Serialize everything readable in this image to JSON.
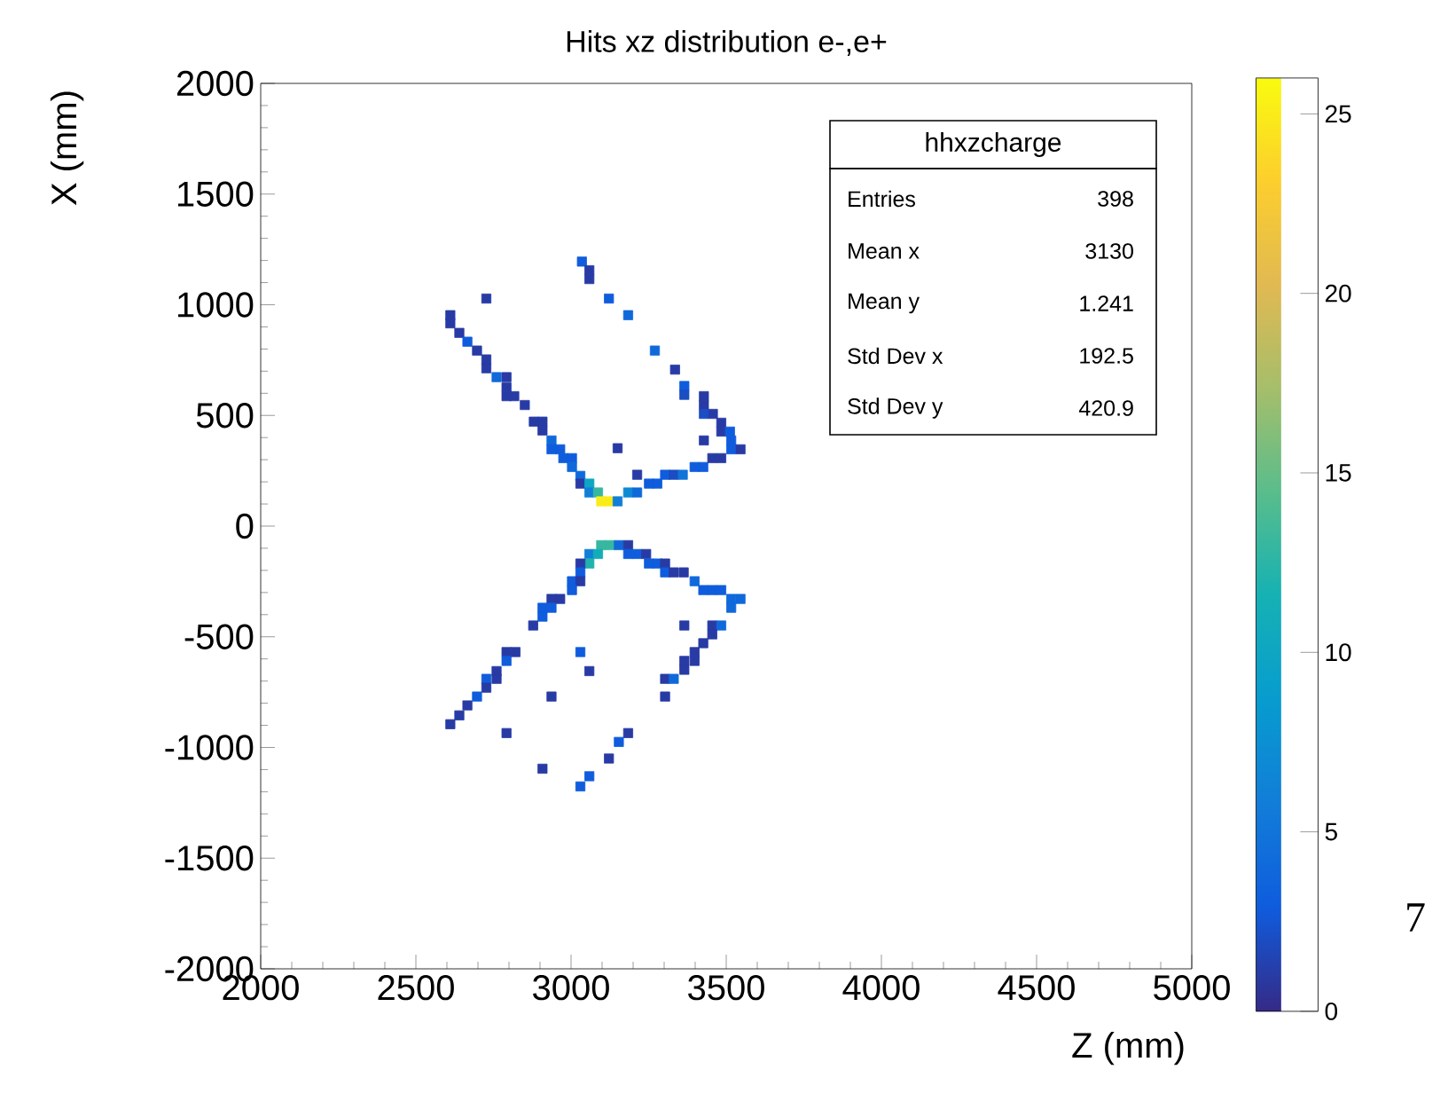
{
  "chart_data": {
    "type": "scatter",
    "title": "Hits xz distribution e-,e+",
    "xlabel": "Z (mm)",
    "ylabel": "X (mm)",
    "x": [
      3035,
      3059,
      3059,
      2727,
      3122,
      3184,
      2611,
      2611,
      2640,
      2666,
      2697,
      2727,
      2727,
      2760,
      2792,
      2792,
      2792,
      2817,
      2851,
      3270,
      3335,
      3365,
      3365,
      3428,
      3428,
      3457,
      3428,
      3484,
      3484,
      3512,
      3516,
      3516,
      3546,
      3428,
      2880,
      2908,
      2908,
      2937,
      2937,
      2965,
      2975,
      3003,
      3003,
      3150,
      3030,
      3030,
      3059,
      3059,
      3087,
      3097,
      3122,
      3150,
      3184,
      3213,
      3213,
      3251,
      3278,
      3303,
      3331,
      3360,
      3398,
      3426,
      3455,
      3484,
      3097,
      3125,
      3154,
      3184,
      3059,
      3087,
      3059,
      3030,
      3184,
      3213,
      3242,
      3251,
      3278,
      3303,
      3303,
      3331,
      3363,
      3398,
      3426,
      3455,
      3484,
      3516,
      3546,
      3516,
      3030,
      3003,
      3030,
      3003,
      2937,
      2965,
      2908,
      2937,
      2908,
      2878,
      3365,
      3455,
      3484,
      3455,
      3426,
      2792,
      2821,
      2792,
      3030,
      3398,
      3398,
      3365,
      3365,
      2760,
      2760,
      2727,
      2727,
      2697,
      3059,
      3303,
      3331,
      2666,
      2640,
      2611,
      2937,
      3303,
      2792,
      3184,
      3154,
      3122,
      2908,
      3059,
      3030
    ],
    "values": [
      1195,
      1156,
      1116,
      1028,
      1028,
      953,
      953,
      916,
      873,
      833,
      793,
      753,
      713,
      673,
      673,
      627,
      587,
      587,
      547,
      793,
      707,
      633,
      593,
      587,
      547,
      507,
      507,
      467,
      427,
      427,
      387,
      347,
      347,
      387,
      472,
      472,
      432,
      387,
      347,
      347,
      307,
      307,
      267,
      352,
      227,
      192,
      192,
      152,
      152,
      112,
      112,
      112,
      152,
      152,
      232,
      192,
      192,
      232,
      232,
      232,
      267,
      267,
      307,
      307,
      -86,
      -86,
      -86,
      -86,
      -126,
      -126,
      -169,
      -169,
      -126,
      -126,
      -126,
      -169,
      -169,
      -169,
      -209,
      -209,
      -209,
      -249,
      -289,
      -289,
      -289,
      -329,
      -329,
      -369,
      -209,
      -249,
      -249,
      -289,
      -329,
      -329,
      -369,
      -369,
      -409,
      -449,
      -449,
      -449,
      -449,
      -489,
      -529,
      -569,
      -569,
      -609,
      -569,
      -569,
      -609,
      -609,
      -649,
      -655,
      -690,
      -690,
      -730,
      -770,
      -655,
      -690,
      -690,
      -810,
      -855,
      -895,
      -770,
      -770,
      -935,
      -935,
      -975,
      -1050,
      -1096,
      -1130,
      -1176
    ],
    "cvalues": [
      3,
      1,
      1,
      1,
      3,
      4,
      1,
      1,
      1,
      3,
      1,
      1,
      1,
      4,
      1,
      1,
      1,
      1,
      1,
      4,
      1,
      3,
      2,
      1,
      1,
      1,
      2,
      1,
      1,
      3,
      3,
      3,
      1,
      1,
      1,
      1,
      1,
      4,
      3,
      3,
      3,
      3,
      4,
      1,
      4,
      1,
      10,
      6,
      13,
      25,
      25,
      6,
      7,
      4,
      1,
      3,
      3,
      3,
      2,
      5,
      3,
      3,
      1,
      1,
      13,
      13,
      4,
      1,
      6,
      11,
      12,
      1,
      3,
      3,
      1,
      3,
      3,
      1,
      3,
      1,
      1,
      4,
      3,
      3,
      3,
      4,
      4,
      4,
      3,
      3,
      1,
      3,
      1,
      1,
      3,
      3,
      3,
      1,
      1,
      1,
      4,
      1,
      1,
      1,
      1,
      3,
      3,
      1,
      1,
      1,
      1,
      1,
      1,
      3,
      1,
      3,
      1,
      1,
      4,
      1,
      1,
      1,
      1,
      1,
      1,
      1,
      3,
      1,
      1,
      3,
      3
    ],
    "xlim": [
      2000,
      5000
    ],
    "ylim": [
      -2000,
      2000
    ],
    "xticks": [
      2000,
      2500,
      3000,
      3500,
      4000,
      4500,
      5000
    ],
    "yticks": [
      -2000,
      -1500,
      -1000,
      -500,
      0,
      500,
      1000,
      1500,
      2000
    ],
    "clim": [
      0,
      26
    ],
    "cticks": [
      0,
      5,
      10,
      15,
      20,
      25
    ],
    "marker": "square",
    "annotations": [
      "hhxzcharge",
      "Entries",
      "398",
      "Mean x",
      "3130",
      "Mean y",
      "1.241",
      "Std Dev x",
      "192.5",
      "Std Dev y",
      "420.9",
      "7"
    ]
  }
}
